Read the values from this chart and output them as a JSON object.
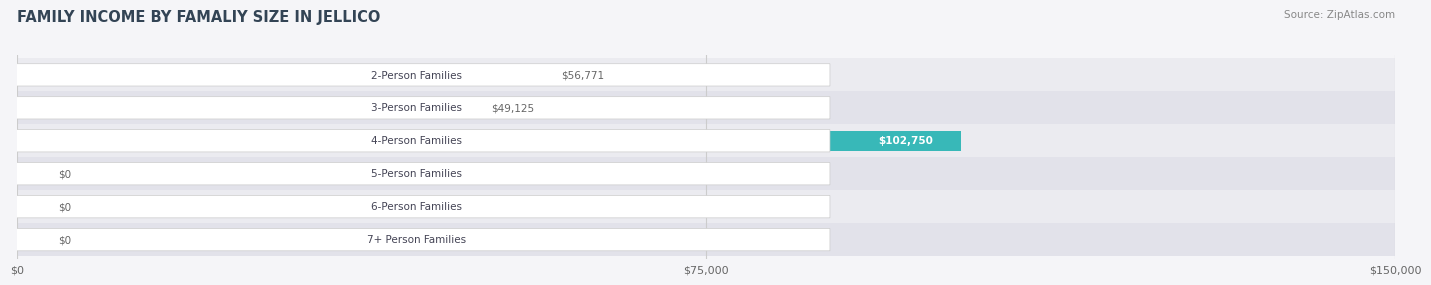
{
  "title": "FAMILY INCOME BY FAMALIY SIZE IN JELLICO",
  "source": "Source: ZipAtlas.com",
  "categories": [
    "2-Person Families",
    "3-Person Families",
    "4-Person Families",
    "5-Person Families",
    "6-Person Families",
    "7+ Person Families"
  ],
  "values": [
    56771,
    49125,
    102750,
    0,
    0,
    0
  ],
  "bar_colors": [
    "#a8b8e8",
    "#b89ec8",
    "#38b8b8",
    "#b0a8e8",
    "#f898a8",
    "#f8c898"
  ],
  "value_labels": [
    "$56,771",
    "$49,125",
    "$102,750",
    "$0",
    "$0",
    "$0"
  ],
  "xlim": [
    0,
    150000
  ],
  "xticks": [
    0,
    75000,
    150000
  ],
  "xticklabels": [
    "$0",
    "$75,000",
    "$150,000"
  ],
  "bar_height": 0.62,
  "background_color": "#f5f5f8",
  "label_text_color": "#444455",
  "row_colors": [
    "#ebebf0",
    "#e2e2ea"
  ]
}
